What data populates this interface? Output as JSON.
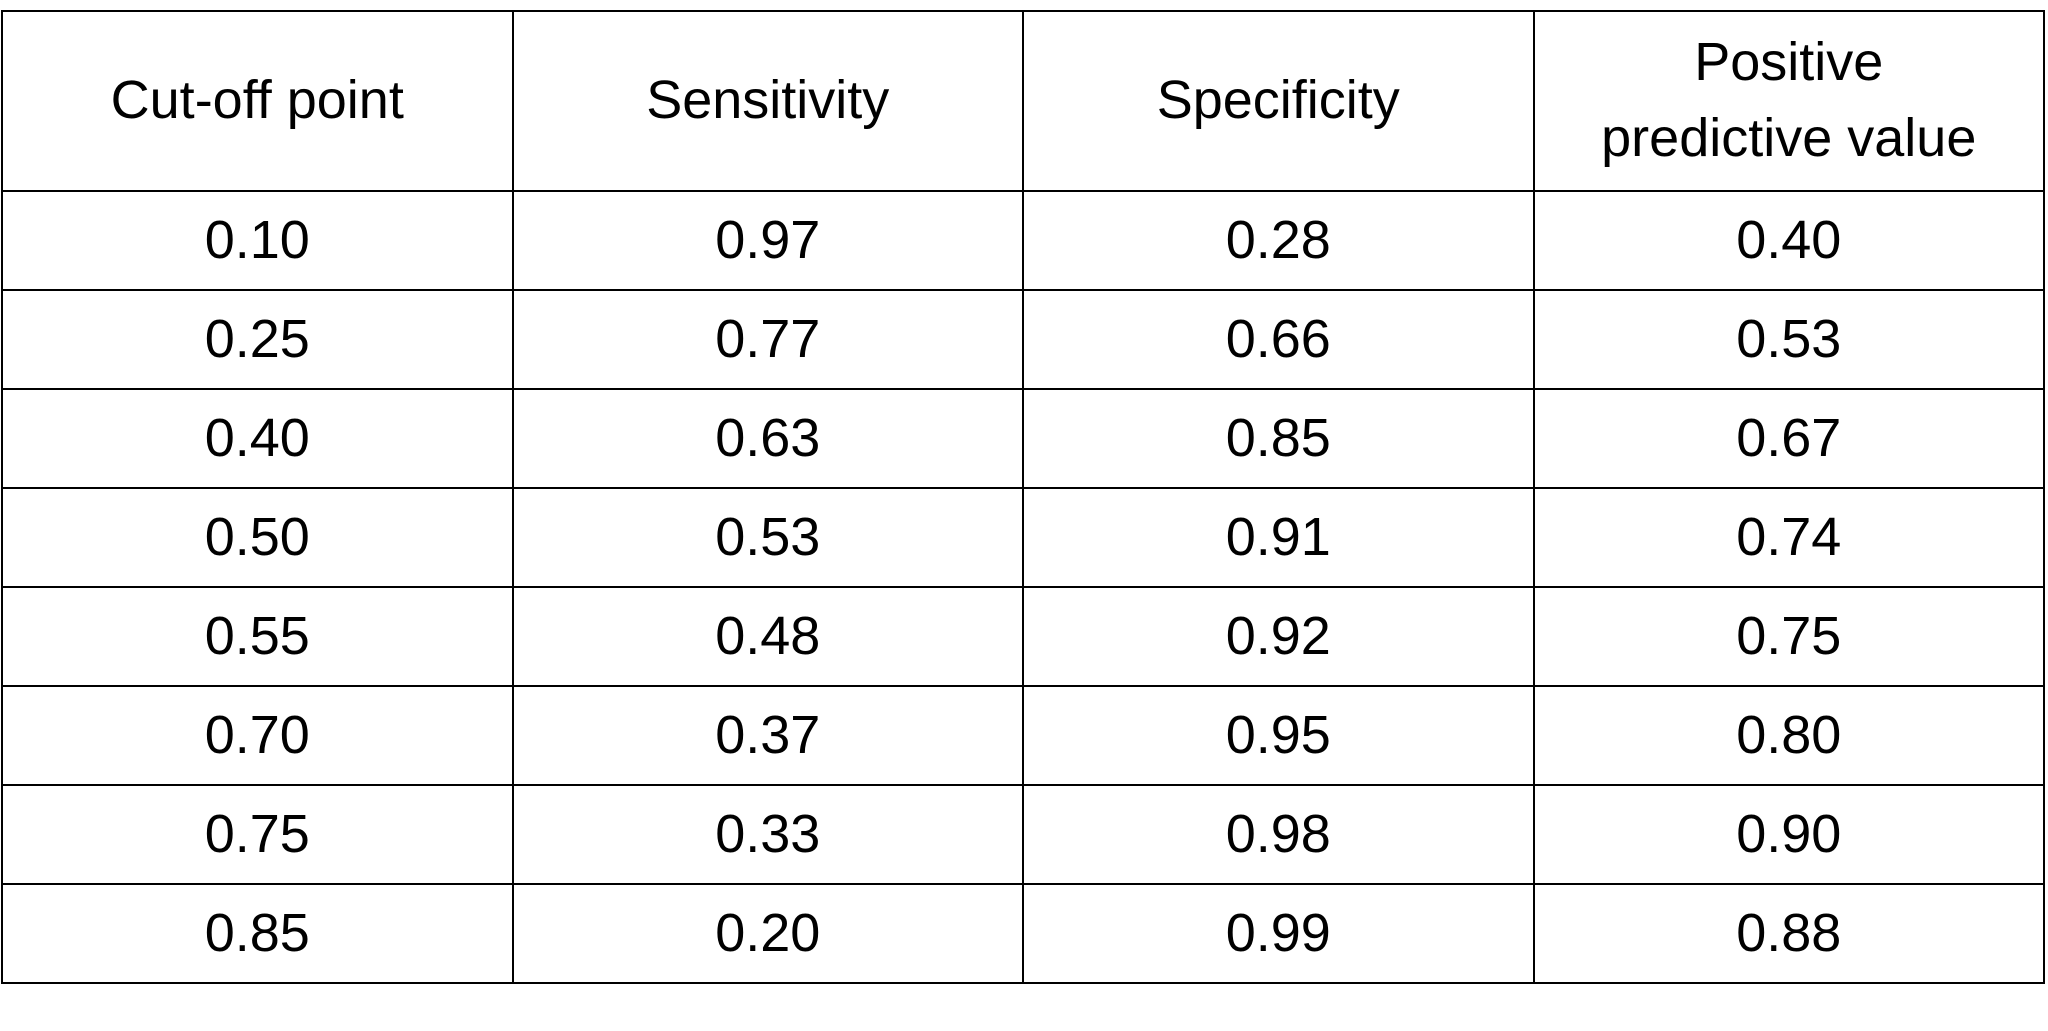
{
  "table": {
    "header": [
      "Cut-off point",
      "Sensitivity",
      "Specificity",
      "Positive predictive value"
    ],
    "rows": [
      [
        "0.10",
        "0.97",
        "0.28",
        "0.40"
      ],
      [
        "0.25",
        "0.77",
        "0.66",
        "0.53"
      ],
      [
        "0.40",
        "0.63",
        "0.85",
        "0.67"
      ],
      [
        "0.50",
        "0.53",
        "0.91",
        "0.74"
      ],
      [
        "0.55",
        "0.48",
        "0.92",
        "0.75"
      ],
      [
        "0.70",
        "0.37",
        "0.95",
        "0.80"
      ],
      [
        "0.75",
        "0.33",
        "0.98",
        "0.90"
      ],
      [
        "0.85",
        "0.20",
        "0.99",
        "0.88"
      ]
    ]
  }
}
